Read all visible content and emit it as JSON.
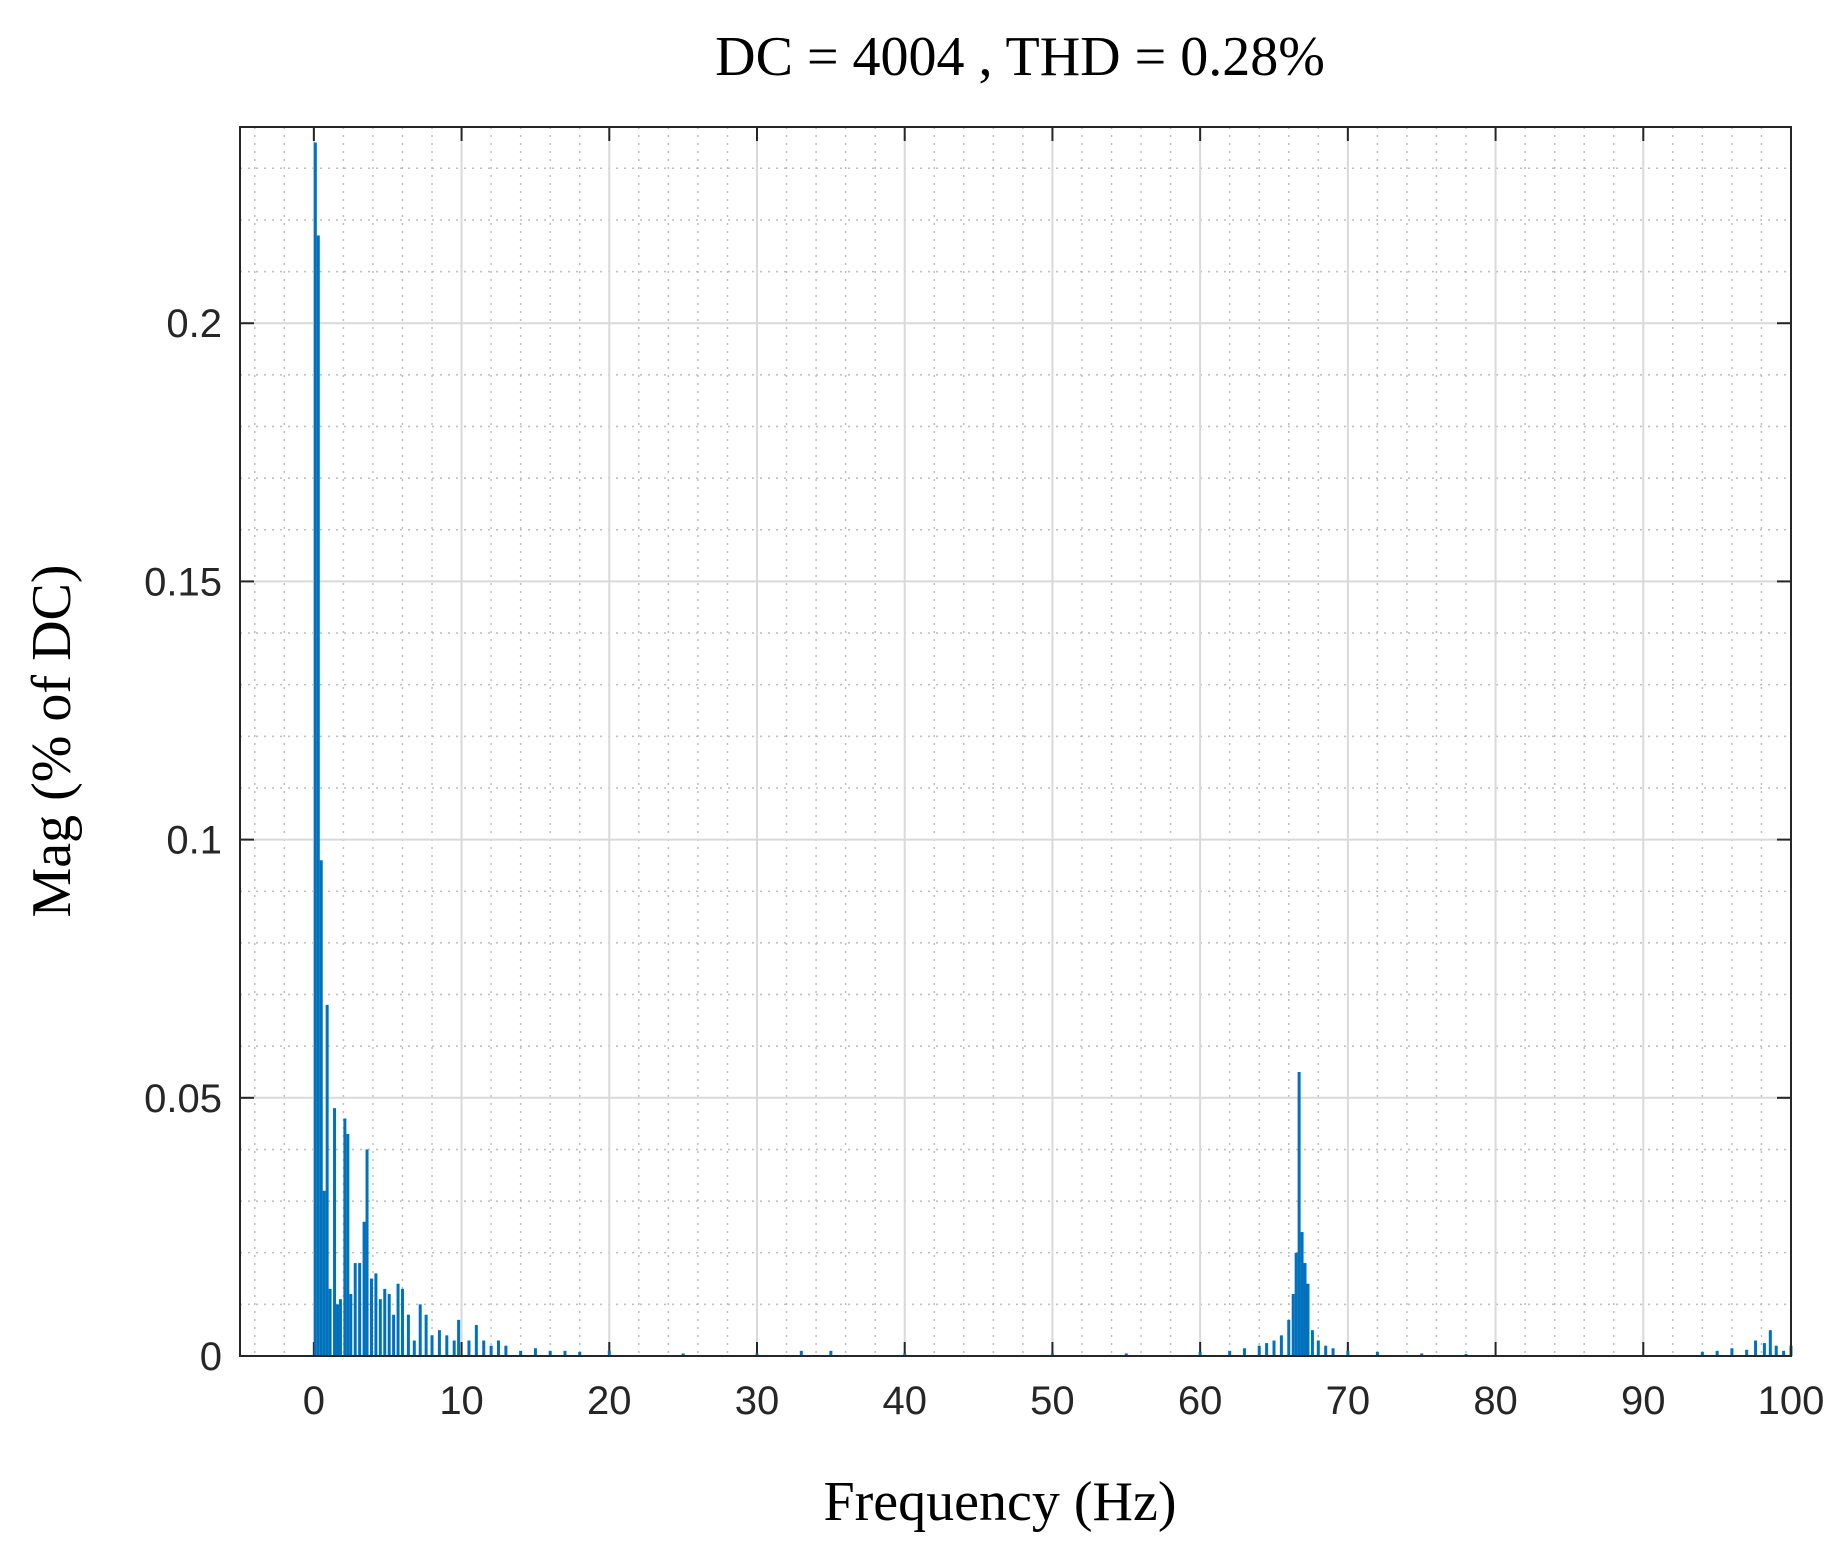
{
  "chart_data": {
    "type": "bar",
    "title": "DC = 4004 , THD = 0.28%",
    "xlabel": "Frequency (Hz)",
    "ylabel": "Mag (% of DC)",
    "color": "#0072bd",
    "grid": true,
    "minor_grid": true,
    "xlim": [
      -5,
      100
    ],
    "ylim": [
      0,
      0.238
    ],
    "xticks": [
      0,
      10,
      20,
      30,
      40,
      50,
      60,
      70,
      80,
      90,
      100
    ],
    "yticks": [
      0,
      0.05,
      0.1,
      0.15,
      0.2
    ],
    "x": [
      0.1,
      0.3,
      0.5,
      0.7,
      0.9,
      1.1,
      1.4,
      1.6,
      1.8,
      2.1,
      2.3,
      2.5,
      2.8,
      3.1,
      3.4,
      3.6,
      3.9,
      4.2,
      4.5,
      4.8,
      5.1,
      5.4,
      5.7,
      6,
      6.4,
      6.8,
      7.2,
      7.6,
      8,
      8.5,
      9,
      9.5,
      9.8,
      10.5,
      11,
      11.5,
      12,
      12.5,
      13,
      14,
      15,
      16,
      17,
      18,
      20,
      25,
      30,
      33,
      35,
      40,
      50,
      55,
      60,
      62,
      63,
      64,
      64.5,
      65,
      65.5,
      66,
      66.3,
      66.5,
      66.7,
      66.9,
      67.1,
      67.3,
      67.6,
      68,
      68.5,
      69,
      70,
      72,
      75,
      78,
      94,
      95,
      96,
      97,
      97.6,
      98.2,
      98.6,
      99,
      99.5,
      100
    ],
    "values": [
      0.235,
      0.217,
      0.096,
      0.032,
      0.068,
      0.013,
      0.048,
      0.01,
      0.011,
      0.046,
      0.043,
      0.012,
      0.018,
      0.018,
      0.026,
      0.04,
      0.015,
      0.016,
      0.011,
      0.013,
      0.012,
      0.008,
      0.014,
      0.013,
      0.008,
      0.003,
      0.01,
      0.008,
      0.004,
      0.005,
      0.004,
      0.003,
      0.007,
      0.003,
      0.006,
      0.003,
      0.002,
      0.003,
      0.002,
      0.001,
      0.0015,
      0.001,
      0.001,
      0.0008,
      0.001,
      0.0005,
      0.0005,
      0.001,
      0.001,
      0.0005,
      0.0005,
      0.0005,
      0.0008,
      0.001,
      0.0015,
      0.002,
      0.0025,
      0.003,
      0.004,
      0.007,
      0.012,
      0.02,
      0.055,
      0.024,
      0.018,
      0.014,
      0.005,
      0.003,
      0.002,
      0.0015,
      0.001,
      0.0008,
      0.0005,
      0.0004,
      0.0008,
      0.001,
      0.0015,
      0.0012,
      0.003,
      0.0025,
      0.005,
      0.002,
      0.001,
      0.002
    ]
  }
}
